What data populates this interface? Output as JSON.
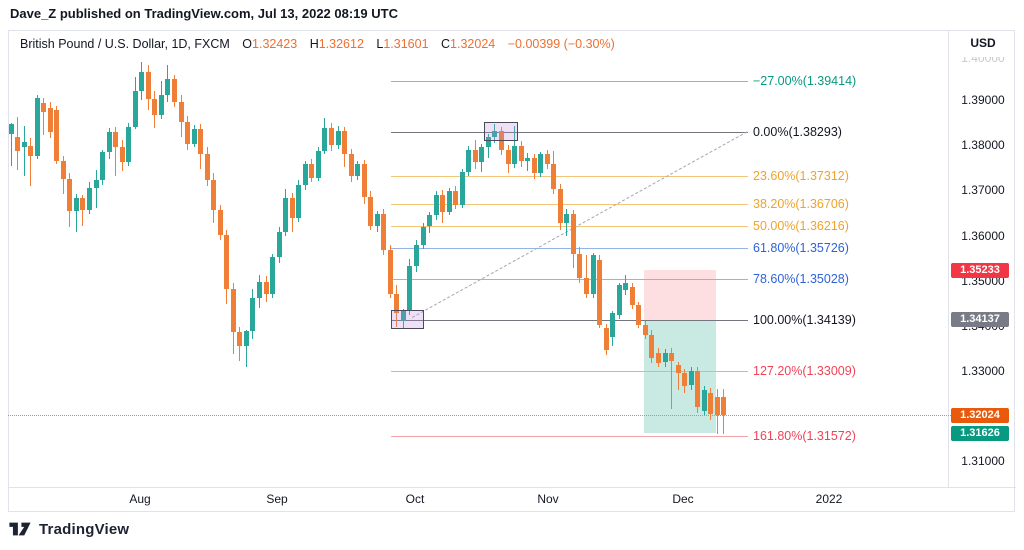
{
  "header": {
    "attribution": "Dave_Z published on TradingView.com, Jul 13, 2022 08:19 UTC"
  },
  "legend": {
    "symbol": "British Pound / U.S. Dollar, 1D, FXCM",
    "o_label": "O",
    "o": "1.32423",
    "h_label": "H",
    "h": "1.32612",
    "l_label": "L",
    "l": "1.31601",
    "c_label": "C",
    "c": "1.32024",
    "change": "−0.00399 (−0.30%)"
  },
  "price_axis": {
    "currency": "USD",
    "ticks": [
      {
        "label": "1.40000",
        "value": 1.4,
        "clipped": true
      },
      {
        "label": "1.39000",
        "value": 1.39
      },
      {
        "label": "1.38000",
        "value": 1.38
      },
      {
        "label": "1.37000",
        "value": 1.37
      },
      {
        "label": "1.36000",
        "value": 1.36
      },
      {
        "label": "1.35000",
        "value": 1.35
      },
      {
        "label": "1.34000",
        "value": 1.34
      },
      {
        "label": "1.33000",
        "value": 1.33
      },
      {
        "label": "1.31000",
        "value": 1.31
      }
    ],
    "badges": [
      {
        "text": "1.35233",
        "value": 1.35233,
        "bg": "#f23645",
        "name": "stop-price-badge"
      },
      {
        "text": "1.34137",
        "value": 1.34137,
        "bg": "#787b86",
        "name": "entry-price-badge"
      },
      {
        "text": "1.32024",
        "value": 1.32024,
        "bg": "#e8590c",
        "name": "last-price-badge"
      },
      {
        "text": "1.31626",
        "value": 1.31626,
        "bg": "#089981",
        "name": "low-price-badge"
      }
    ]
  },
  "time_axis": {
    "labels": [
      {
        "text": "Aug",
        "x": 140
      },
      {
        "text": "Sep",
        "x": 277
      },
      {
        "text": "Oct",
        "x": 415
      },
      {
        "text": "Nov",
        "x": 548
      },
      {
        "text": "Dec",
        "x": 683
      },
      {
        "text": "2022",
        "x": 829
      }
    ]
  },
  "footer": {
    "brand": "TradingView"
  },
  "chart_data": {
    "type": "candlestick",
    "title": "British Pound / U.S. Dollar, 1D, FXCM",
    "timeframe": "1D",
    "ylabel": "USD",
    "ylim": [
      1.305,
      1.4005
    ],
    "grid": false,
    "up_color": "#2aa79b",
    "down_color": "#ef7f37",
    "last_ohlc": {
      "open": 1.32423,
      "high": 1.32612,
      "low": 1.31601,
      "close": 1.32024,
      "change": -0.00399,
      "change_pct": -0.3
    },
    "layout": {
      "x_start": 11,
      "x_step": 6.54,
      "body_width": 5,
      "fib_x1": 391,
      "fib_x2": 748,
      "label_x": 753
    },
    "fib_levels": [
      {
        "label": "−27.00%(1.39414)",
        "pct": -27.0,
        "value": 1.39414,
        "text_color": "#089981",
        "line_color": "#76c5bc"
      },
      {
        "label": "0.00%(1.38293)",
        "pct": 0.0,
        "value": 1.38293,
        "text_color": "#131722",
        "line_color": "#73767f"
      },
      {
        "label": "23.60%(1.37312)",
        "pct": 23.6,
        "value": 1.37312,
        "text_color": "#f0a32a",
        "line_color": "#f3c579"
      },
      {
        "label": "38.20%(1.36706)",
        "pct": 38.2,
        "value": 1.36706,
        "text_color": "#f0a32a",
        "line_color": "#f3c579"
      },
      {
        "label": "50.00%(1.36216)",
        "pct": 50.0,
        "value": 1.36216,
        "text_color": "#f0a32a",
        "line_color": "#f3c579"
      },
      {
        "label": "61.80%(1.35726)",
        "pct": 61.8,
        "value": 1.35726,
        "text_color": "#2f62d9",
        "line_color": "#96b3e8"
      },
      {
        "label": "78.60%(1.35028)",
        "pct": 78.6,
        "value": 1.35028,
        "text_color": "#2f62d9",
        "line_color": "#96b3e8"
      },
      {
        "label": "100.00%(1.34139)",
        "pct": 100.0,
        "value": 1.34139,
        "text_color": "#131722",
        "line_color": "#73767f"
      },
      {
        "label": "127.20%(1.33009)",
        "pct": 127.2,
        "value": 1.33009,
        "text_color": "#ee4456",
        "line_color": "#f2a4aa"
      },
      {
        "label": "161.80%(1.31572)",
        "pct": 161.8,
        "value": 1.31572,
        "text_color": "#ee4456",
        "line_color": "#f2a4aa"
      }
    ],
    "annotations": {
      "zones": [
        {
          "name": "short-risk-zone",
          "x": 644,
          "w": 72,
          "p_top": 1.35233,
          "p_bottom": 1.34137,
          "color": "rgba(242,54,69,0.16)"
        },
        {
          "name": "short-reward-zone",
          "x": 644,
          "w": 72,
          "p_top": 1.34137,
          "p_bottom": 1.31626,
          "color": "rgba(8,153,129,0.22)"
        }
      ],
      "markers": [
        {
          "name": "swing-low-marker-box",
          "x": 391,
          "w": 33,
          "center": 1.34139,
          "h": 19,
          "fill": "rgba(187,134,219,0.25)",
          "border": "#4a4a5a"
        },
        {
          "name": "swing-high-marker-box",
          "x": 484,
          "w": 34,
          "center": 1.38293,
          "h": 19,
          "fill": "rgba(187,134,219,0.25)",
          "border": "#4a4a5a"
        }
      ],
      "trendline": {
        "x1": 412,
        "p1": 1.342,
        "x2": 747,
        "p2": 1.3831,
        "color": "#a5a8b1"
      },
      "last_price_line": {
        "value": 1.32024,
        "color": "#df8a54"
      }
    },
    "candles": [
      [
        1.3824,
        1.385,
        1.3754,
        1.3846
      ],
      [
        1.3817,
        1.3862,
        1.3745,
        1.3788
      ],
      [
        1.3795,
        1.3843,
        1.3732,
        1.3806
      ],
      [
        1.3799,
        1.3815,
        1.371,
        1.3777
      ],
      [
        1.3777,
        1.3911,
        1.377,
        1.3904
      ],
      [
        1.3893,
        1.3905,
        1.3822,
        1.3874
      ],
      [
        1.3882,
        1.3896,
        1.3815,
        1.3829
      ],
      [
        1.3878,
        1.3886,
        1.3758,
        1.3766
      ],
      [
        1.3766,
        1.3775,
        1.3693,
        1.3725
      ],
      [
        1.3725,
        1.3738,
        1.3618,
        1.3655
      ],
      [
        1.3655,
        1.3692,
        1.3608,
        1.3682
      ],
      [
        1.3682,
        1.369,
        1.3622,
        1.3656
      ],
      [
        1.3656,
        1.3718,
        1.3648,
        1.3706
      ],
      [
        1.3706,
        1.3745,
        1.366,
        1.3722
      ],
      [
        1.3722,
        1.379,
        1.3712,
        1.3784
      ],
      [
        1.3784,
        1.3838,
        1.377,
        1.383
      ],
      [
        1.383,
        1.384,
        1.3732,
        1.3795
      ],
      [
        1.3795,
        1.3812,
        1.3742,
        1.3762
      ],
      [
        1.3762,
        1.3848,
        1.3755,
        1.3841
      ],
      [
        1.3841,
        1.3952,
        1.3835,
        1.3921
      ],
      [
        1.3921,
        1.3985,
        1.39,
        1.3962
      ],
      [
        1.3962,
        1.3977,
        1.3878,
        1.3902
      ],
      [
        1.3902,
        1.392,
        1.3838,
        1.3866
      ],
      [
        1.3866,
        1.3942,
        1.3858,
        1.3912
      ],
      [
        1.3912,
        1.3977,
        1.3895,
        1.3946
      ],
      [
        1.3946,
        1.3955,
        1.3885,
        1.3896
      ],
      [
        1.3896,
        1.391,
        1.3818,
        1.3851
      ],
      [
        1.3851,
        1.3865,
        1.379,
        1.3802
      ],
      [
        1.3802,
        1.3844,
        1.3795,
        1.3836
      ],
      [
        1.3836,
        1.3846,
        1.3748,
        1.3781
      ],
      [
        1.3781,
        1.3795,
        1.371,
        1.3722
      ],
      [
        1.3722,
        1.3738,
        1.3628,
        1.3656
      ],
      [
        1.3656,
        1.3668,
        1.359,
        1.3601
      ],
      [
        1.3601,
        1.3612,
        1.3448,
        1.3482
      ],
      [
        1.3482,
        1.3495,
        1.3338,
        1.3386
      ],
      [
        1.3386,
        1.3398,
        1.3322,
        1.3356
      ],
      [
        1.3356,
        1.3392,
        1.331,
        1.3388
      ],
      [
        1.3388,
        1.3482,
        1.3372,
        1.3462
      ],
      [
        1.3462,
        1.3512,
        1.344,
        1.3498
      ],
      [
        1.3498,
        1.351,
        1.3452,
        1.347
      ],
      [
        1.347,
        1.356,
        1.3462,
        1.3552
      ],
      [
        1.3552,
        1.3618,
        1.354,
        1.3608
      ],
      [
        1.3608,
        1.3702,
        1.36,
        1.3682
      ],
      [
        1.3682,
        1.3695,
        1.3608,
        1.3638
      ],
      [
        1.3638,
        1.3722,
        1.363,
        1.3712
      ],
      [
        1.3712,
        1.3765,
        1.37,
        1.3758
      ],
      [
        1.3758,
        1.377,
        1.3718,
        1.3728
      ],
      [
        1.3728,
        1.3795,
        1.372,
        1.3788
      ],
      [
        1.3788,
        1.386,
        1.378,
        1.3838
      ],
      [
        1.3838,
        1.3848,
        1.3788,
        1.38
      ],
      [
        1.38,
        1.3842,
        1.3792,
        1.3832
      ],
      [
        1.3832,
        1.384,
        1.3752,
        1.378
      ],
      [
        1.378,
        1.3792,
        1.3718,
        1.3731
      ],
      [
        1.3731,
        1.3765,
        1.3722,
        1.3758
      ],
      [
        1.3758,
        1.3768,
        1.367,
        1.3685
      ],
      [
        1.3685,
        1.3698,
        1.3612,
        1.3622
      ],
      [
        1.3622,
        1.3655,
        1.3608,
        1.3648
      ],
      [
        1.3648,
        1.3658,
        1.3558,
        1.3568
      ],
      [
        1.3568,
        1.3578,
        1.3462,
        1.347
      ],
      [
        1.347,
        1.349,
        1.3398,
        1.3428
      ],
      [
        1.341,
        1.3438,
        1.3396,
        1.3434
      ],
      [
        1.3434,
        1.3548,
        1.3425,
        1.3532
      ],
      [
        1.3532,
        1.359,
        1.352,
        1.358
      ],
      [
        1.358,
        1.3628,
        1.357,
        1.362
      ],
      [
        1.362,
        1.3652,
        1.3605,
        1.3645
      ],
      [
        1.3645,
        1.3698,
        1.3635,
        1.369
      ],
      [
        1.369,
        1.37,
        1.3628,
        1.3652
      ],
      [
        1.3652,
        1.3705,
        1.3645,
        1.3698
      ],
      [
        1.3698,
        1.371,
        1.3658,
        1.3668
      ],
      [
        1.3668,
        1.3748,
        1.366,
        1.374
      ],
      [
        1.374,
        1.3798,
        1.3732,
        1.379
      ],
      [
        1.379,
        1.3812,
        1.3748,
        1.3762
      ],
      [
        1.3762,
        1.3802,
        1.374,
        1.3795
      ],
      [
        1.3795,
        1.3825,
        1.3772,
        1.3818
      ],
      [
        1.3818,
        1.3846,
        1.3805,
        1.3832
      ],
      [
        1.3832,
        1.384,
        1.3778,
        1.379
      ],
      [
        1.379,
        1.38,
        1.3738,
        1.3758
      ],
      [
        1.3758,
        1.3843,
        1.375,
        1.3798
      ],
      [
        1.3798,
        1.381,
        1.3752,
        1.3765
      ],
      [
        1.3765,
        1.3782,
        1.3742,
        1.3772
      ],
      [
        1.3772,
        1.378,
        1.3726,
        1.3738
      ],
      [
        1.3738,
        1.3786,
        1.373,
        1.378
      ],
      [
        1.378,
        1.379,
        1.3748,
        1.3758
      ],
      [
        1.3758,
        1.3788,
        1.3692,
        1.3702
      ],
      [
        1.3702,
        1.3715,
        1.3612,
        1.3628
      ],
      [
        1.3628,
        1.3658,
        1.36,
        1.3648
      ],
      [
        1.3648,
        1.3656,
        1.3528,
        1.356
      ],
      [
        1.356,
        1.3575,
        1.3495,
        1.3505
      ],
      [
        1.3505,
        1.3558,
        1.3462,
        1.347
      ],
      [
        1.347,
        1.3562,
        1.3462,
        1.3557
      ],
      [
        1.3546,
        1.3558,
        1.3395,
        1.3403
      ],
      [
        1.3396,
        1.3405,
        1.3336,
        1.3347
      ],
      [
        1.3375,
        1.3432,
        1.3356,
        1.3428
      ],
      [
        1.3424,
        1.3496,
        1.3415,
        1.3491
      ],
      [
        1.348,
        1.3513,
        1.3468,
        1.3495
      ],
      [
        1.3486,
        1.3495,
        1.3438,
        1.3446
      ],
      [
        1.3446,
        1.3452,
        1.3395,
        1.3402
      ],
      [
        1.3402,
        1.341,
        1.3372,
        1.338
      ],
      [
        1.338,
        1.339,
        1.3318,
        1.3329
      ],
      [
        1.334,
        1.3352,
        1.3308,
        1.3318
      ],
      [
        1.332,
        1.3348,
        1.331,
        1.334
      ],
      [
        1.334,
        1.335,
        1.3215,
        1.3322
      ],
      [
        1.3313,
        1.332,
        1.3258,
        1.3296
      ],
      [
        1.3296,
        1.3305,
        1.3252,
        1.3266
      ],
      [
        1.327,
        1.331,
        1.3258,
        1.33
      ],
      [
        1.33,
        1.3308,
        1.3208,
        1.3221
      ],
      [
        1.3212,
        1.3268,
        1.3202,
        1.3258
      ],
      [
        1.3252,
        1.3262,
        1.3192,
        1.3205
      ],
      [
        1.3242,
        1.3261,
        1.316,
        1.3202
      ],
      [
        1.32423,
        1.32612,
        1.31601,
        1.32024
      ]
    ]
  }
}
